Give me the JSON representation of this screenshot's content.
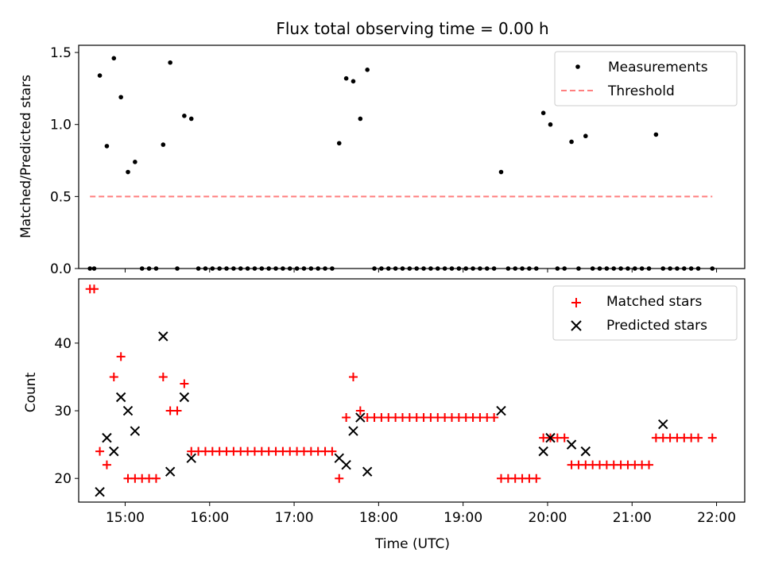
{
  "chart_data": [
    {
      "type": "scatter",
      "title": "Flux total observing time = 0.00 h",
      "ylabel": "Matched/Predicted stars",
      "xlabel": "",
      "xlim": [
        "14:27",
        "22:20"
      ],
      "ylim": [
        0,
        1.55
      ],
      "yticks": [
        0.0,
        0.5,
        1.0,
        1.5
      ],
      "ytick_labels": [
        "0.0",
        "0.5",
        "1.0",
        "1.5"
      ],
      "legend_position": "top-right",
      "series": [
        {
          "name": "Measurements",
          "marker": "dot",
          "color": "#000000",
          "x": [
            "14:35",
            "14:38",
            "14:42",
            "14:47",
            "14:52",
            "14:57",
            "15:02",
            "15:07",
            "15:12",
            "15:17",
            "15:22",
            "15:27",
            "15:32",
            "15:37",
            "15:42",
            "15:47",
            "15:52",
            "15:57",
            "16:02",
            "16:07",
            "16:12",
            "16:17",
            "16:22",
            "16:27",
            "16:32",
            "16:37",
            "16:42",
            "16:47",
            "16:52",
            "16:57",
            "17:02",
            "17:07",
            "17:12",
            "17:17",
            "17:22",
            "17:27",
            "17:32",
            "17:37",
            "17:42",
            "17:47",
            "17:52",
            "17:57",
            "18:02",
            "18:07",
            "18:12",
            "18:17",
            "18:22",
            "18:27",
            "18:32",
            "18:37",
            "18:42",
            "18:47",
            "18:52",
            "18:57",
            "19:02",
            "19:07",
            "19:12",
            "19:17",
            "19:22",
            "19:27",
            "19:32",
            "19:37",
            "19:42",
            "19:47",
            "19:52",
            "19:57",
            "20:02",
            "20:07",
            "20:12",
            "20:17",
            "20:22",
            "20:27",
            "20:32",
            "20:37",
            "20:42",
            "20:47",
            "20:52",
            "20:57",
            "21:02",
            "21:07",
            "21:12",
            "21:17",
            "21:22",
            "21:27",
            "21:32",
            "21:37",
            "21:42",
            "21:47",
            "21:57"
          ],
          "y": [
            0,
            0,
            1.34,
            0.85,
            1.46,
            1.19,
            0.67,
            0.74,
            0,
            0,
            0,
            0.86,
            1.43,
            0,
            1.06,
            1.04,
            0,
            0,
            0,
            0,
            0,
            0,
            0,
            0,
            0,
            0,
            0,
            0,
            0,
            0,
            0,
            0,
            0,
            0,
            0,
            0,
            0.87,
            1.32,
            1.3,
            1.04,
            1.38,
            0,
            0,
            0,
            0,
            0,
            0,
            0,
            0,
            0,
            0,
            0,
            0,
            0,
            0,
            0,
            0,
            0,
            0,
            0.67,
            0,
            0,
            0,
            0,
            0,
            1.08,
            1.0,
            0,
            0,
            0.88,
            0,
            0.92,
            0,
            0,
            0,
            0,
            0,
            0,
            0,
            0,
            0,
            0.93,
            0,
            0,
            0,
            0,
            0,
            0,
            0
          ]
        },
        {
          "name": "Threshold",
          "marker": "dashed-line",
          "color": "#ff7f7f",
          "x": [
            "14:35",
            "21:57"
          ],
          "y": [
            0.5,
            0.5
          ]
        }
      ]
    },
    {
      "type": "scatter",
      "title": "",
      "ylabel": "Count",
      "xlabel": "Time (UTC)",
      "xlim": [
        "14:27",
        "22:20"
      ],
      "ylim": [
        16.5,
        49.5
      ],
      "yticks": [
        20,
        30,
        40
      ],
      "ytick_labels": [
        "20",
        "30",
        "40"
      ],
      "xticks": [
        "15:00",
        "16:00",
        "17:00",
        "18:00",
        "19:00",
        "20:00",
        "21:00",
        "22:00"
      ],
      "legend_position": "top-right",
      "series": [
        {
          "name": "Matched stars",
          "marker": "plus",
          "color": "#ff0000",
          "x": [
            "14:35",
            "14:38",
            "14:42",
            "14:47",
            "14:52",
            "14:57",
            "15:02",
            "15:07",
            "15:12",
            "15:17",
            "15:22",
            "15:27",
            "15:32",
            "15:37",
            "15:42",
            "15:47",
            "15:52",
            "15:57",
            "16:02",
            "16:07",
            "16:12",
            "16:17",
            "16:22",
            "16:27",
            "16:32",
            "16:37",
            "16:42",
            "16:47",
            "16:52",
            "16:57",
            "17:02",
            "17:07",
            "17:12",
            "17:17",
            "17:22",
            "17:27",
            "17:32",
            "17:37",
            "17:42",
            "17:47",
            "17:52",
            "17:57",
            "18:02",
            "18:07",
            "18:12",
            "18:17",
            "18:22",
            "18:27",
            "18:32",
            "18:37",
            "18:42",
            "18:47",
            "18:52",
            "18:57",
            "19:02",
            "19:07",
            "19:12",
            "19:17",
            "19:22",
            "19:27",
            "19:32",
            "19:37",
            "19:42",
            "19:47",
            "19:52",
            "19:57",
            "20:02",
            "20:07",
            "20:12",
            "20:17",
            "20:22",
            "20:27",
            "20:32",
            "20:37",
            "20:42",
            "20:47",
            "20:52",
            "20:57",
            "21:02",
            "21:07",
            "21:12",
            "21:17",
            "21:22",
            "21:27",
            "21:32",
            "21:37",
            "21:42",
            "21:47",
            "21:57"
          ],
          "y": [
            48,
            48,
            24,
            22,
            35,
            38,
            20,
            20,
            20,
            20,
            20,
            35,
            30,
            30,
            34,
            24,
            24,
            24,
            24,
            24,
            24,
            24,
            24,
            24,
            24,
            24,
            24,
            24,
            24,
            24,
            24,
            24,
            24,
            24,
            24,
            24,
            20,
            29,
            35,
            30,
            29,
            29,
            29,
            29,
            29,
            29,
            29,
            29,
            29,
            29,
            29,
            29,
            29,
            29,
            29,
            29,
            29,
            29,
            29,
            20,
            20,
            20,
            20,
            20,
            20,
            26,
            26,
            26,
            26,
            22,
            22,
            22,
            22,
            22,
            22,
            22,
            22,
            22,
            22,
            22,
            22,
            26,
            26,
            26,
            26,
            26,
            26,
            26,
            26
          ]
        },
        {
          "name": "Predicted stars",
          "marker": "x",
          "color": "#000000",
          "x": [
            "14:42",
            "14:47",
            "14:52",
            "14:57",
            "15:02",
            "15:07",
            "15:27",
            "15:32",
            "15:42",
            "15:47",
            "17:32",
            "17:37",
            "17:42",
            "17:47",
            "17:52",
            "19:27",
            "19:57",
            "20:02",
            "20:17",
            "20:27",
            "21:22"
          ],
          "y": [
            18,
            26,
            24,
            32,
            30,
            27,
            41,
            21,
            32,
            23,
            23,
            22,
            27,
            29,
            21,
            30,
            24,
            26,
            25,
            24,
            28
          ]
        }
      ]
    }
  ]
}
